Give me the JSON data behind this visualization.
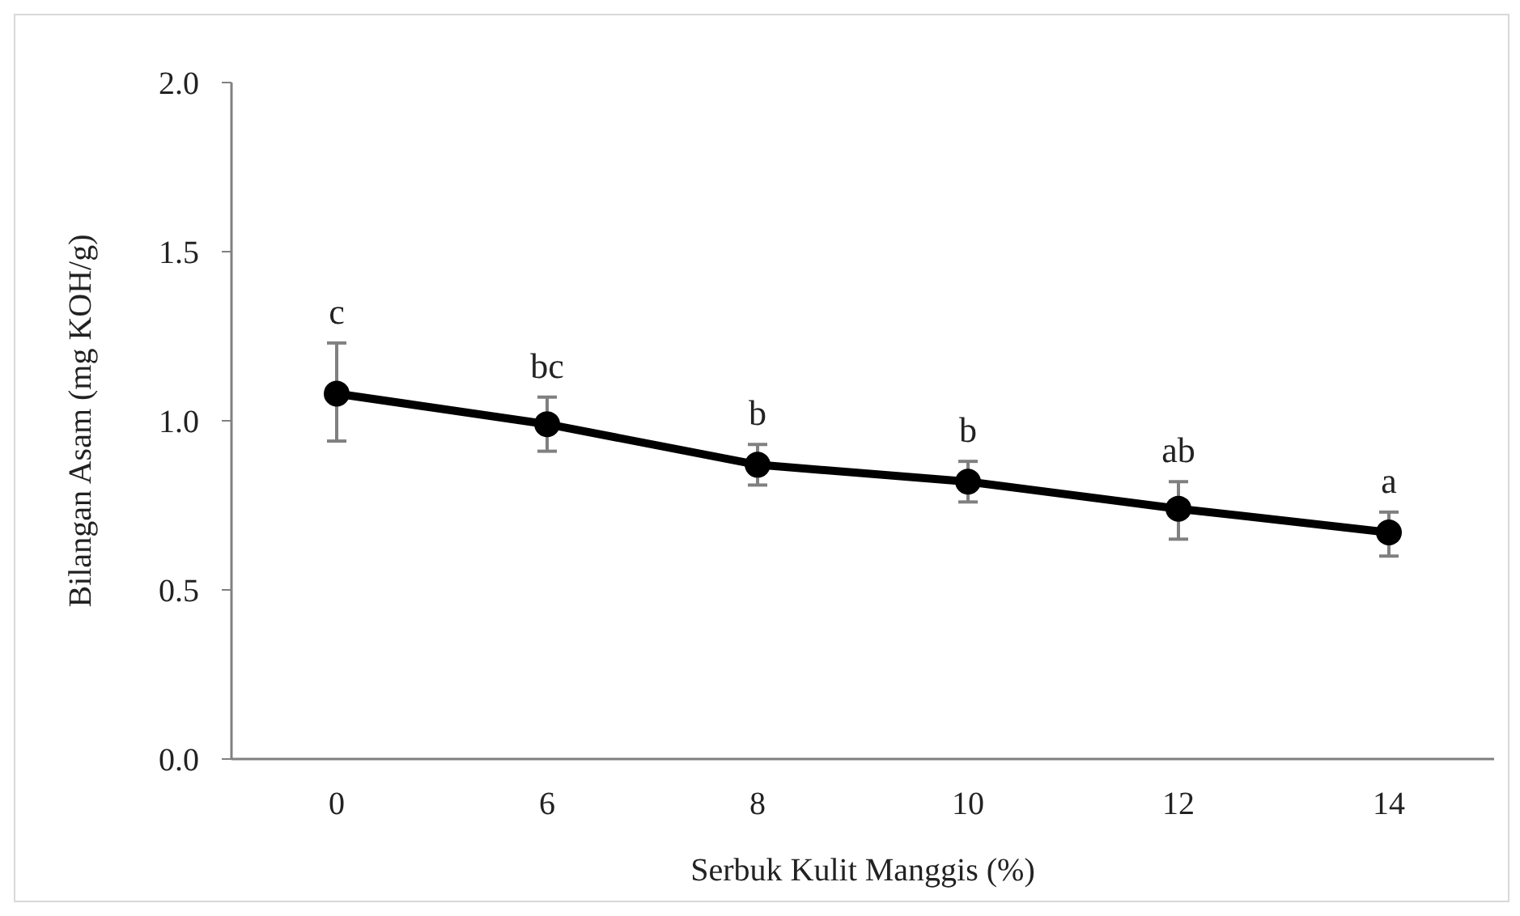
{
  "chart_data": {
    "type": "line",
    "xlabel": "Serbuk Kulit Manggis (%)",
    "ylabel": "Bilangan Asam (mg KOH/g)",
    "categories": [
      "0",
      "6",
      "8",
      "10",
      "12",
      "14"
    ],
    "series": [
      {
        "color": "#000000",
        "values": [
          1.08,
          0.99,
          0.87,
          0.82,
          0.74,
          0.67
        ],
        "errors": [
          [
            0.94,
            1.23
          ],
          [
            0.91,
            1.07
          ],
          [
            0.81,
            0.93
          ],
          [
            0.76,
            0.88
          ],
          [
            0.65,
            0.82
          ],
          [
            0.6,
            0.73
          ]
        ]
      }
    ],
    "ylim": [
      0,
      2
    ],
    "yticks": [
      {
        "value": 0,
        "label": "0.0"
      },
      {
        "value": 0.5,
        "label": "0.5"
      },
      {
        "value": 1,
        "label": "1.0"
      },
      {
        "value": 1.5,
        "label": "1.5"
      },
      {
        "value": 2,
        "label": "2.0"
      }
    ],
    "marker": "circle",
    "line_style": "solid",
    "annotations": [
      {
        "text": "c",
        "x": "0",
        "y": 1.23
      },
      {
        "text": "bc",
        "x": "6",
        "y": 1.07
      },
      {
        "text": "b",
        "x": "8",
        "y": 0.93
      },
      {
        "text": "b",
        "x": "10",
        "y": 0.88
      },
      {
        "text": "ab",
        "x": "12",
        "y": 0.82
      },
      {
        "text": "a",
        "x": "14",
        "y": 0.73
      }
    ]
  }
}
